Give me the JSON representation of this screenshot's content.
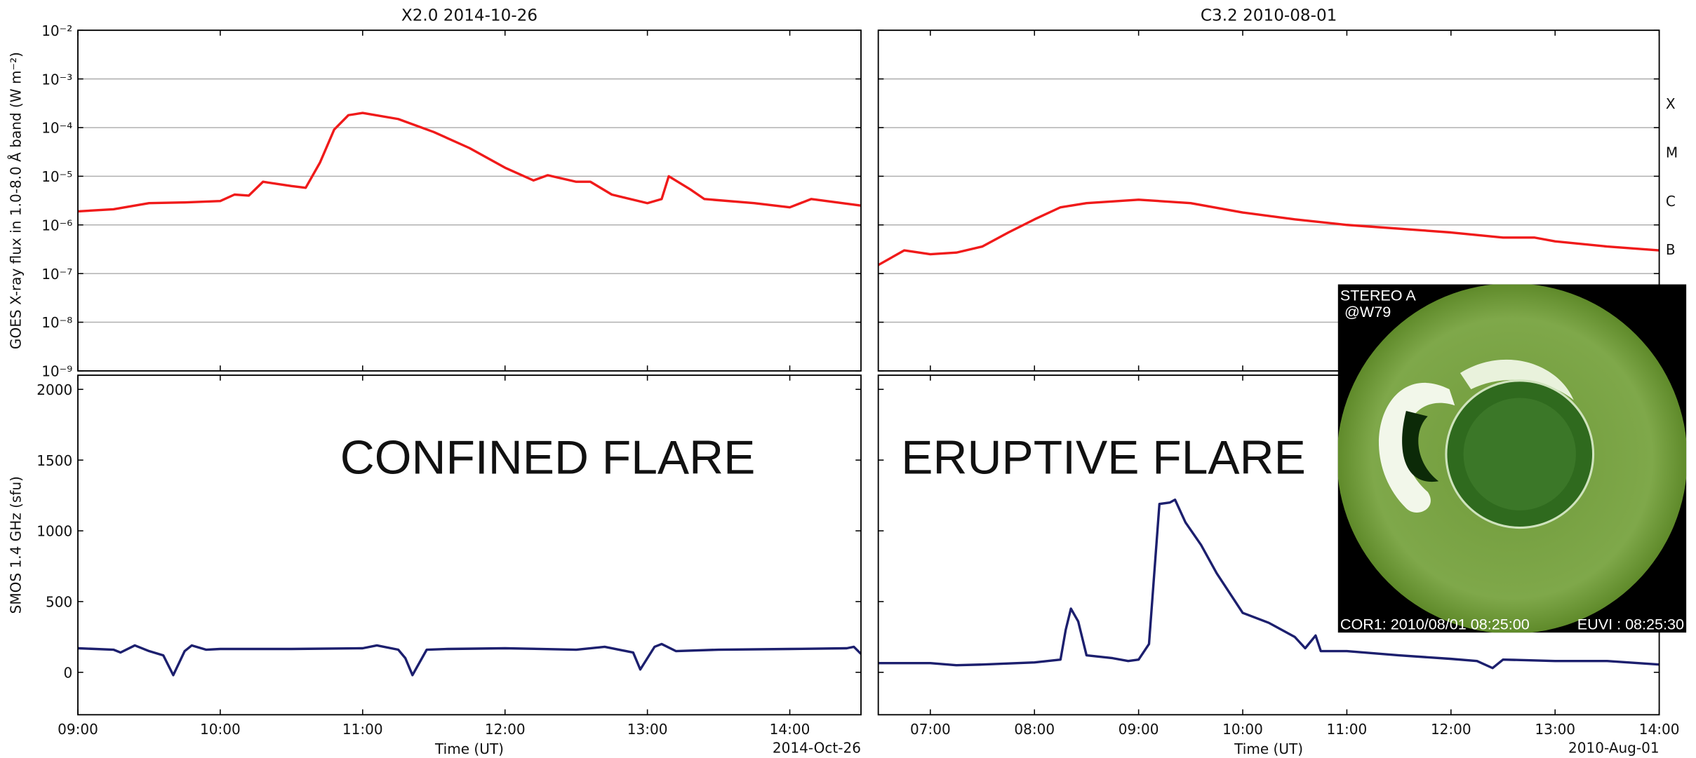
{
  "chart_data": [
    {
      "type": "line",
      "title": "X2.0 2014-10-26",
      "ylabel": "GOES X-ray flux in 1.0-8.0 Å band (W m⁻²)",
      "log_y": true,
      "grid": true,
      "xlim": [
        9,
        14.5
      ],
      "ylim": [
        1e-09,
        0.01
      ],
      "yticks": [
        {
          "value": 1e-09,
          "label": "10⁻⁹"
        },
        {
          "value": 1e-08,
          "label": "10⁻⁸"
        },
        {
          "value": 1e-07,
          "label": "10⁻⁷"
        },
        {
          "value": 1e-06,
          "label": "10⁻⁶"
        },
        {
          "value": 1e-05,
          "label": "10⁻⁵"
        },
        {
          "value": 0.0001,
          "label": "10⁻⁴"
        },
        {
          "value": 0.001,
          "label": "10⁻³"
        },
        {
          "value": 0.01,
          "label": "10⁻²"
        }
      ],
      "x": [
        9.0,
        9.25,
        9.5,
        9.75,
        10.0,
        10.1,
        10.2,
        10.3,
        10.5,
        10.6,
        10.7,
        10.8,
        10.9,
        11.0,
        11.25,
        11.5,
        11.75,
        12.0,
        12.2,
        12.3,
        12.5,
        12.6,
        12.75,
        13.0,
        13.1,
        13.15,
        13.3,
        13.4,
        13.75,
        14.0,
        14.15,
        14.5
      ],
      "series": [
        {
          "color": "#f01a1a",
          "values": [
            1.9e-06,
            2.1e-06,
            2.8e-06,
            2.9e-06,
            3.1e-06,
            4.2e-06,
            4e-06,
            7.7e-06,
            6.3e-06,
            5.8e-06,
            1.9e-05,
            9.1e-05,
            0.00018,
            0.0002,
            0.00015,
            8.1e-05,
            3.8e-05,
            1.5e-05,
            8.2e-06,
            1.05e-05,
            7.7e-06,
            7.7e-06,
            4.2e-06,
            2.8e-06,
            3.4e-06,
            1e-05,
            5.4e-06,
            3.4e-06,
            2.8e-06,
            2.3e-06,
            3.4e-06,
            2.5e-06
          ]
        }
      ]
    },
    {
      "type": "line",
      "title": "C3.2 2010-08-01",
      "log_y": true,
      "grid": true,
      "xlim": [
        6.5,
        14
      ],
      "ylim": [
        1e-09,
        0.01
      ],
      "y2lim": [
        1e-09,
        0.01
      ],
      "y2ticks": [
        {
          "value": 0.000316,
          "label": "X"
        },
        {
          "value": 3.16e-05,
          "label": "M"
        },
        {
          "value": 3.16e-06,
          "label": "C"
        },
        {
          "value": 3.16e-07,
          "label": "B"
        }
      ],
      "x": [
        6.5,
        6.75,
        7.0,
        7.25,
        7.5,
        7.75,
        8.0,
        8.25,
        8.5,
        9.0,
        9.5,
        10.0,
        10.5,
        11.0,
        12.0,
        12.5,
        12.8,
        13.0,
        13.5,
        14.0
      ],
      "series": [
        {
          "color": "#f01a1a",
          "values": [
            1.5e-07,
            3e-07,
            2.5e-07,
            2.7e-07,
            3.6e-07,
            7e-07,
            1.3e-06,
            2.3e-06,
            2.8e-06,
            3.3e-06,
            2.8e-06,
            1.8e-06,
            1.3e-06,
            1e-06,
            7e-07,
            5.5e-07,
            5.5e-07,
            4.6e-07,
            3.6e-07,
            3e-07
          ]
        }
      ]
    },
    {
      "type": "line",
      "ylabel": "SMOS 1.4 GHz (sfu)",
      "xlabel": "Time (UT)",
      "date_label": "2014-Oct-26",
      "annotation": "CONFINED FLARE",
      "xlim": [
        9,
        14.5
      ],
      "ylim": [
        -300,
        2100
      ],
      "yticks": [
        0,
        500,
        1000,
        1500,
        2000
      ],
      "xticks": [
        {
          "value": 9,
          "label": "09:00"
        },
        {
          "value": 10,
          "label": "10:00"
        },
        {
          "value": 11,
          "label": "11:00"
        },
        {
          "value": 12,
          "label": "12:00"
        },
        {
          "value": 13,
          "label": "13:00"
        },
        {
          "value": 14,
          "label": "14:00"
        }
      ],
      "x": [
        9.0,
        9.25,
        9.3,
        9.4,
        9.5,
        9.6,
        9.67,
        9.75,
        9.8,
        9.9,
        10.0,
        10.5,
        11.0,
        11.1,
        11.25,
        11.3,
        11.35,
        11.45,
        11.6,
        12.0,
        12.5,
        12.7,
        12.9,
        12.95,
        13.05,
        13.1,
        13.2,
        13.5,
        14.0,
        14.4,
        14.45,
        14.5
      ],
      "series": [
        {
          "color": "#1c1f6e",
          "values": [
            170,
            160,
            140,
            190,
            150,
            120,
            -20,
            150,
            190,
            160,
            165,
            165,
            170,
            190,
            160,
            100,
            -20,
            160,
            165,
            170,
            160,
            180,
            140,
            20,
            180,
            200,
            150,
            160,
            165,
            170,
            180,
            130
          ]
        }
      ]
    },
    {
      "type": "line",
      "xlabel": "Time (UT)",
      "date_label": "2010-Aug-01",
      "annotation": "ERUPTIVE FLARE",
      "xlim": [
        6.5,
        14
      ],
      "ylim": [
        -300,
        2100
      ],
      "xticks": [
        {
          "value": 7,
          "label": "07:00"
        },
        {
          "value": 8,
          "label": "08:00"
        },
        {
          "value": 9,
          "label": "09:00"
        },
        {
          "value": 10,
          "label": "10:00"
        },
        {
          "value": 11,
          "label": "11:00"
        },
        {
          "value": 12,
          "label": "12:00"
        },
        {
          "value": 13,
          "label": "13:00"
        },
        {
          "value": 14,
          "label": "14:00"
        }
      ],
      "x": [
        6.5,
        7.0,
        7.25,
        7.5,
        8.0,
        8.25,
        8.3,
        8.35,
        8.42,
        8.5,
        8.75,
        8.9,
        9.0,
        9.1,
        9.2,
        9.3,
        9.35,
        9.45,
        9.6,
        9.75,
        10.0,
        10.25,
        10.5,
        10.6,
        10.7,
        10.75,
        11.0,
        11.5,
        12.0,
        12.25,
        12.4,
        12.5,
        13.0,
        13.5,
        14.0
      ],
      "series": [
        {
          "color": "#1c1f6e",
          "values": [
            65,
            65,
            50,
            55,
            70,
            90,
            300,
            450,
            360,
            120,
            100,
            80,
            90,
            200,
            1190,
            1200,
            1220,
            1060,
            900,
            700,
            420,
            350,
            250,
            170,
            260,
            150,
            150,
            120,
            95,
            80,
            30,
            90,
            80,
            80,
            55
          ]
        }
      ]
    }
  ],
  "inset": {
    "instrument": "STEREO A",
    "position": "@W79",
    "cor1": "COR1: 2010/08/01 08:25:00",
    "euvi": "EUVI : 08:25:30"
  }
}
